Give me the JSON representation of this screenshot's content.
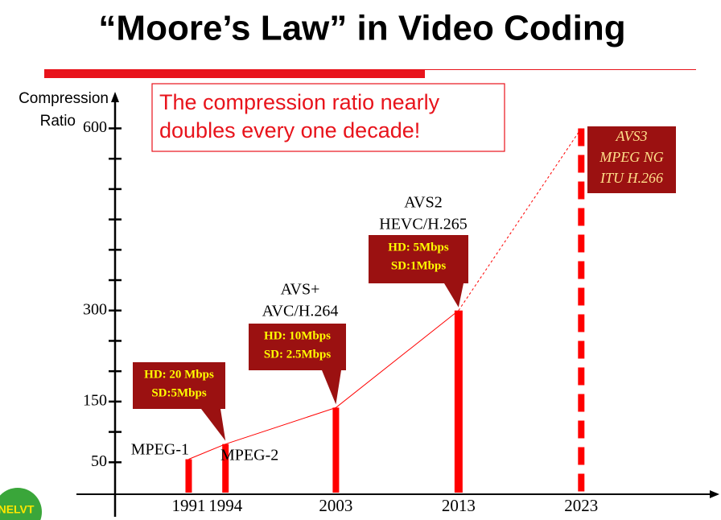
{
  "chart_data": {
    "type": "bar",
    "title": "“Moore’s Law” in Video Coding",
    "ylabel": [
      "Compression",
      "Ratio"
    ],
    "annotation": [
      "The compression ratio nearly",
      "doubles every one decade!"
    ],
    "x": [
      1991,
      1994,
      2003,
      2013,
      2023
    ],
    "values": [
      55,
      80,
      140,
      300,
      600
    ],
    "projected": [
      false,
      false,
      false,
      false,
      true
    ],
    "color": "#ff0000",
    "xlim": [
      1985,
      2034
    ],
    "xticks": [
      1991,
      1994,
      2003,
      2013,
      2023
    ],
    "ylim": [
      0,
      655
    ],
    "yticks": [
      50,
      150,
      300,
      600
    ],
    "minor_yticks": [
      100,
      200,
      250,
      350,
      400,
      450,
      500,
      550
    ],
    "bar_labels": [
      [
        "MPEG-1"
      ],
      [
        "MPEG-2"
      ],
      [
        "AVS+",
        "AVC/H.264"
      ],
      [
        "AVS2",
        "HEVC/H.265"
      ],
      [
        "AVS3",
        "MPEG NG",
        "ITU H.266"
      ]
    ],
    "callouts": [
      null,
      [
        "HD: 20 Mbps",
        "SD:5Mbps"
      ],
      [
        "HD: 10Mbps",
        "SD: 2.5Mbps"
      ],
      [
        "HD: 5Mbps",
        "SD:1Mbps"
      ],
      null
    ],
    "logo": "NELVT"
  }
}
